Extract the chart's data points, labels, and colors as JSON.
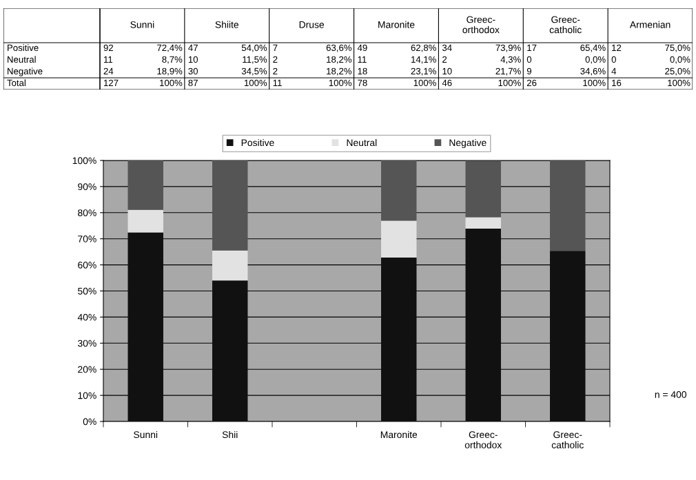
{
  "chart_data": [
    {
      "type": "other",
      "annotations": [
        "Sunni",
        "Shiite",
        "Druse",
        "Maronite",
        "Greec-\northodox",
        "Greec-\ncatholic",
        "Armenian",
        "Positive",
        "92",
        "72,4%",
        "47",
        "54,0%",
        "7",
        "63,6%",
        "49",
        "62,8%",
        "34",
        "73,9%",
        "17",
        "65,4%",
        "12",
        "75,0%",
        "Neutral",
        "11",
        "8,7%",
        "10",
        "11,5%",
        "2",
        "18,2%",
        "11",
        "14,1%",
        "2",
        "4,3%",
        "0",
        "0,0%",
        "0",
        "0,0%",
        "Negative",
        "24",
        "18,9%",
        "30",
        "34,5%",
        "2",
        "18,2%",
        "18",
        "23,1%",
        "10",
        "21,7%",
        "9",
        "34,6%",
        "4",
        "25,0%",
        "Total",
        "127",
        "100%",
        "87",
        "100%",
        "11",
        "100%",
        "78",
        "100%",
        "46",
        "100%",
        "26",
        "100%",
        "16",
        "100%"
      ]
    },
    {
      "type": "bar",
      "stacked": true,
      "categories": [
        "Sunni",
        "Shii",
        null,
        "Maronite",
        "Greec-\northodox",
        "Greec-\ncatholic"
      ],
      "series": [
        {
          "name": "Positive",
          "color": "#111111",
          "values": [
            72.4,
            54.0,
            null,
            62.8,
            73.9,
            65.4
          ]
        },
        {
          "name": "Neutral",
          "color": "#e2e2e2",
          "values": [
            8.7,
            11.5,
            null,
            14.1,
            4.3,
            0.0
          ]
        },
        {
          "name": "Negative",
          "color": "#555555",
          "values": [
            18.9,
            34.5,
            null,
            23.1,
            21.7,
            34.6
          ]
        }
      ],
      "ylim": [
        0,
        100
      ],
      "yticks": [
        {
          "value": 0,
          "label": "0%"
        },
        {
          "value": 10,
          "label": "10%"
        },
        {
          "value": 20,
          "label": "20%"
        },
        {
          "value": 30,
          "label": "30%"
        },
        {
          "value": 40,
          "label": "40%"
        },
        {
          "value": 50,
          "label": "50%"
        },
        {
          "value": 60,
          "label": "60%"
        },
        {
          "value": 70,
          "label": "70%"
        },
        {
          "value": 80,
          "label": "80%"
        },
        {
          "value": 90,
          "label": "90%"
        },
        {
          "value": 100,
          "label": "100%"
        }
      ],
      "grid": "y",
      "legend": "top",
      "annotations": [
        "n = 400"
      ]
    }
  ]
}
